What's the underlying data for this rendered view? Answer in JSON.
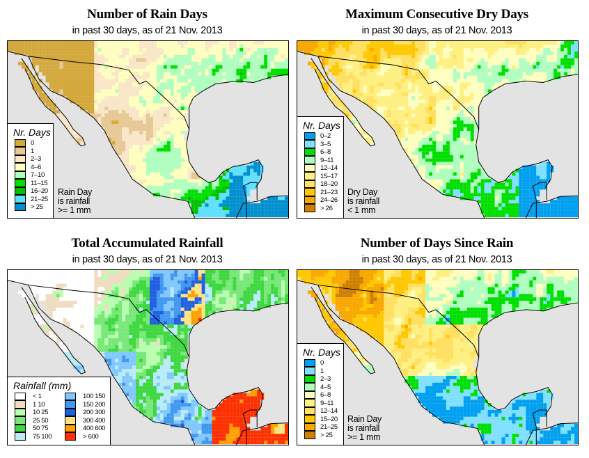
{
  "panels": [
    {
      "id": "rain-days",
      "title": "Number of Rain Days",
      "subtitle": "in past 30 days, as of  21 Nov. 2013",
      "legend": {
        "title": "Nr. Days",
        "items": [
          {
            "label": "0",
            "color": "#d4a83a"
          },
          {
            "label": "1",
            "color": "#e6c994"
          },
          {
            "label": "2–3",
            "color": "#fae7c8"
          },
          {
            "label": "4–6",
            "color": "#ffffc0"
          },
          {
            "label": "7–10",
            "color": "#b0ffc0"
          },
          {
            "label": "11–15",
            "color": "#00e000"
          },
          {
            "label": "16–20",
            "color": "#00c000"
          },
          {
            "label": "21–25",
            "color": "#60e0ff"
          },
          {
            "label": "> 25",
            "color": "#0090d0"
          }
        ]
      },
      "note": [
        "Rain Day",
        "is rainfall",
        ">= 1 mm"
      ]
    },
    {
      "id": "max-dry-days",
      "title": "Maximum Consecutive Dry Days",
      "subtitle": "in past 30 days, as of  21 Nov. 2013",
      "legend": {
        "title": "Nr. Days",
        "items": [
          {
            "label": "0–2",
            "color": "#00a0f0"
          },
          {
            "label": "3–5",
            "color": "#80e0ff"
          },
          {
            "label": "6–8",
            "color": "#00e000"
          },
          {
            "label": "9–11",
            "color": "#b0ffc0"
          },
          {
            "label": "12–14",
            "color": "#ffffc0"
          },
          {
            "label": "15–17",
            "color": "#fff080"
          },
          {
            "label": "18–20",
            "color": "#ffe060"
          },
          {
            "label": "21–23",
            "color": "#ffc800"
          },
          {
            "label": "24–26",
            "color": "#f8a800"
          },
          {
            "label": "> 26",
            "color": "#d08000"
          }
        ]
      },
      "note": [
        "Dry Day",
        "is rainfall",
        "< 1 mm"
      ]
    },
    {
      "id": "total-rainfall",
      "title": "Total Accumulated Rainfall",
      "subtitle": "in past 30 days, as of  21 Nov. 2013",
      "legend": {
        "title": "Rainfall (mm)",
        "items": [
          {
            "label": "< 1",
            "color": "#ffffff"
          },
          {
            "label": "1  10",
            "color": "#f0dcc0"
          },
          {
            "label": "10  25",
            "color": "#b8ffb0"
          },
          {
            "label": "25  50",
            "color": "#78e878"
          },
          {
            "label": "50  75",
            "color": "#40d840"
          },
          {
            "label": "75  100",
            "color": "#b8ecf8"
          },
          {
            "label": "100  150",
            "color": "#80c8ff"
          },
          {
            "label": "150  200",
            "color": "#4098f0"
          },
          {
            "label": "200  300",
            "color": "#2060e0"
          },
          {
            "label": "300  400",
            "color": "#ffe480"
          },
          {
            "label": "400  600",
            "color": "#ffa000"
          },
          {
            "label": "> 600",
            "color": "#ff3000"
          }
        ]
      },
      "note": []
    },
    {
      "id": "days-since-rain",
      "title": "Number of Days Since Rain",
      "subtitle": "in past 30 days, as of  21 Nov. 2013",
      "legend": {
        "title": "Nr. Days",
        "items": [
          {
            "label": "0",
            "color": "#00a0f0"
          },
          {
            "label": "1",
            "color": "#80e0ff"
          },
          {
            "label": "2–3",
            "color": "#00e000"
          },
          {
            "label": "4–5",
            "color": "#b0ffc0"
          },
          {
            "label": "6–8",
            "color": "#ffffc0"
          },
          {
            "label": "9–11",
            "color": "#fff080"
          },
          {
            "label": "12–14",
            "color": "#ffe060"
          },
          {
            "label": "15–20",
            "color": "#ffc800"
          },
          {
            "label": "21–25",
            "color": "#f8a800"
          },
          {
            "label": "> 25",
            "color": "#d08000"
          }
        ]
      },
      "note": [
        "Rain Day",
        "is rainfall",
        ">= 1 mm"
      ]
    }
  ],
  "colors": {
    "ocean": "#e3e3e3",
    "border": "#000000"
  }
}
